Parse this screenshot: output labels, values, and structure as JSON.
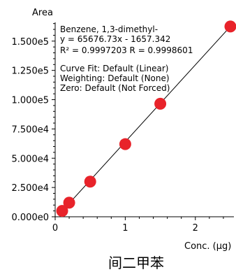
{
  "chart_data": {
    "type": "scatter",
    "title": "间二甲苯",
    "xlabel": "Conc. (µg)",
    "ylabel": "Area",
    "xlim": [
      0,
      2.55
    ],
    "ylim": [
      0,
      166000
    ],
    "x_ticks": [
      {
        "value": 0,
        "label": "0"
      },
      {
        "value": 1,
        "label": "1"
      },
      {
        "value": 2,
        "label": "2"
      }
    ],
    "y_ticks": [
      {
        "value": 0,
        "label": "0.000e0"
      },
      {
        "value": 25000,
        "label": "2.500e4"
      },
      {
        "value": 50000,
        "label": "5.000e4"
      },
      {
        "value": 75000,
        "label": "7.500e4"
      },
      {
        "value": 100000,
        "label": "1.000e5"
      },
      {
        "value": 125000,
        "label": "1.250e5"
      },
      {
        "value": 150000,
        "label": "1.500e5"
      }
    ],
    "series": [
      {
        "points": [
          {
            "x": 0.1,
            "y": 5000
          },
          {
            "x": 0.2,
            "y": 12000
          },
          {
            "x": 0.5,
            "y": 30000
          },
          {
            "x": 1.0,
            "y": 62000
          },
          {
            "x": 1.5,
            "y": 96500
          },
          {
            "x": 2.5,
            "y": 162500
          }
        ],
        "color": "#e8232a"
      }
    ],
    "fit_line": {
      "slope": 65676.73,
      "intercept": -1657.342,
      "x_start": 0.05,
      "x_end": 2.55
    },
    "annotations": [
      "Benzene, 1,3-dimethyl-",
      "y = 65676.73x - 1657.342",
      "R² = 0.9997203    R = 0.9998601",
      "Curve Fit: Default (Linear)",
      "Weighting: Default (None)",
      "Zero: Default (Not Forced)"
    ],
    "grid": false,
    "legend": "none"
  }
}
